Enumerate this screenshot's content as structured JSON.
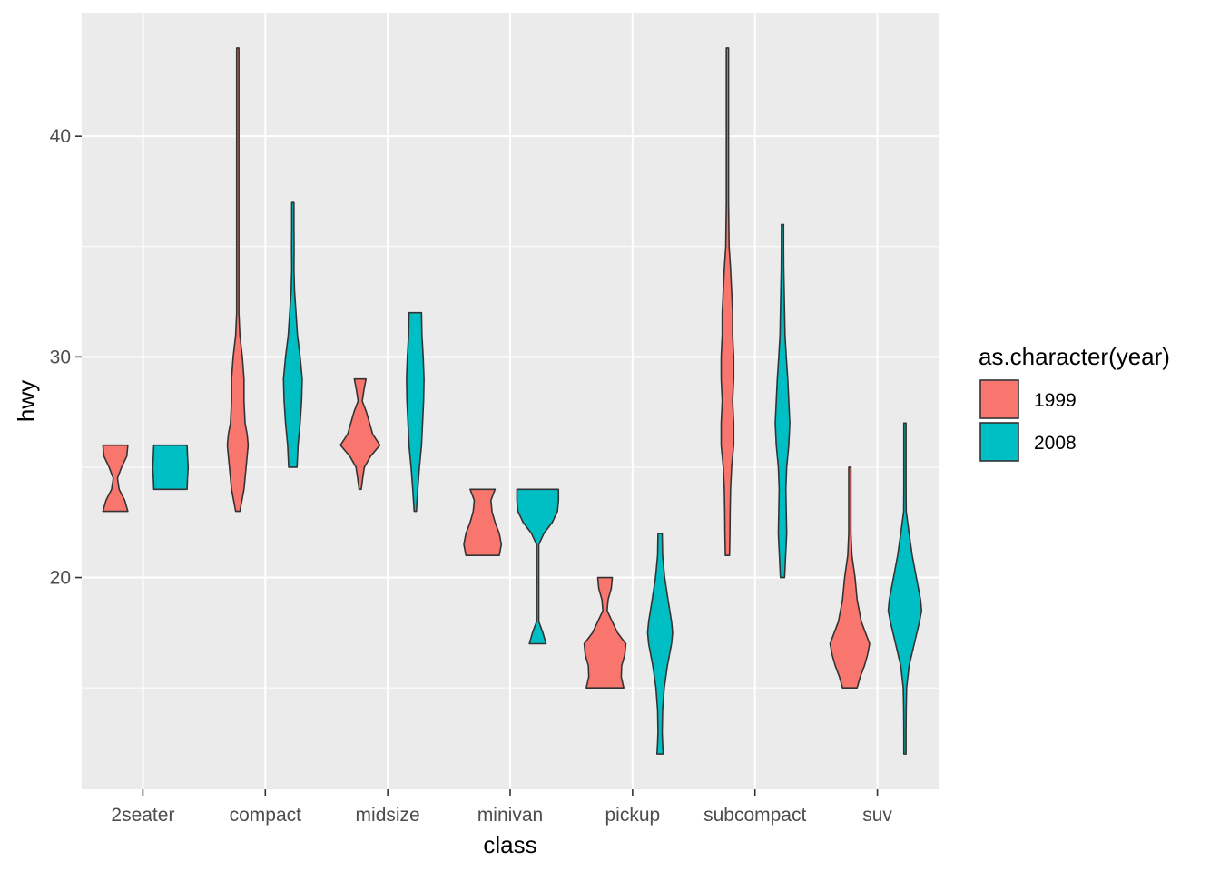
{
  "chart_data": {
    "type": "violin",
    "title": "",
    "xlabel": "class",
    "ylabel": "hwy",
    "categories": [
      "2seater",
      "compact",
      "midsize",
      "minivan",
      "pickup",
      "subcompact",
      "suv"
    ],
    "ylim": [
      10.4,
      45.6
    ],
    "y_ticks": [
      20,
      30,
      40
    ],
    "y_tick_labels": [
      "20",
      "30",
      "40"
    ],
    "y_minor_ticks": [
      15,
      25,
      35
    ],
    "legend": {
      "title": "as.character(year)",
      "position": "right",
      "entries": [
        {
          "label": "1999",
          "color": "#F8766D"
        },
        {
          "label": "2008",
          "color": "#00BFC4"
        }
      ]
    },
    "series": [
      {
        "name": "1999",
        "color": "#F8766D",
        "violins": [
          {
            "category": "2seater",
            "min": 23,
            "max": 26,
            "profile": [
              [
                23,
                0.6
              ],
              [
                23.5,
                0.45
              ],
              [
                24,
                0.18
              ],
              [
                24.5,
                0.1
              ],
              [
                25,
                0.3
              ],
              [
                25.5,
                0.55
              ],
              [
                26,
                0.6
              ]
            ]
          },
          {
            "category": "compact",
            "min": 23,
            "max": 44,
            "profile": [
              [
                23,
                0.1
              ],
              [
                23.5,
                0.2
              ],
              [
                24,
                0.3
              ],
              [
                25,
                0.4
              ],
              [
                26,
                0.5
              ],
              [
                26.5,
                0.45
              ],
              [
                27,
                0.35
              ],
              [
                28,
                0.3
              ],
              [
                29,
                0.3
              ],
              [
                30,
                0.22
              ],
              [
                31,
                0.1
              ],
              [
                32,
                0.05
              ],
              [
                34,
                0.03
              ],
              [
                36,
                0.04
              ],
              [
                38,
                0.02
              ],
              [
                40,
                0.02
              ],
              [
                42,
                0.02
              ],
              [
                44,
                0.02
              ]
            ]
          },
          {
            "category": "midsize",
            "min": 24,
            "max": 29,
            "profile": [
              [
                24,
                0.05
              ],
              [
                24.5,
                0.12
              ],
              [
                25,
                0.2
              ],
              [
                25.5,
                0.5
              ],
              [
                26,
                0.95
              ],
              [
                26.5,
                0.6
              ],
              [
                27,
                0.45
              ],
              [
                27.5,
                0.3
              ],
              [
                28,
                0.1
              ],
              [
                28.5,
                0.18
              ],
              [
                29,
                0.28
              ]
            ]
          },
          {
            "category": "minivan",
            "min": 21,
            "max": 24,
            "profile": [
              [
                21,
                0.8
              ],
              [
                21.5,
                0.9
              ],
              [
                22,
                0.8
              ],
              [
                22.5,
                0.6
              ],
              [
                23,
                0.45
              ],
              [
                23.5,
                0.4
              ],
              [
                24,
                0.6
              ]
            ]
          },
          {
            "category": "pickup",
            "min": 15,
            "max": 20,
            "profile": [
              [
                15,
                0.9
              ],
              [
                15.5,
                0.78
              ],
              [
                16,
                0.8
              ],
              [
                16.5,
                0.95
              ],
              [
                17,
                1.0
              ],
              [
                17.5,
                0.6
              ],
              [
                18,
                0.35
              ],
              [
                18.5,
                0.1
              ],
              [
                19,
                0.15
              ],
              [
                19.5,
                0.3
              ],
              [
                20,
                0.35
              ]
            ]
          },
          {
            "category": "subcompact",
            "min": 21,
            "max": 44,
            "profile": [
              [
                21,
                0.1
              ],
              [
                22,
                0.12
              ],
              [
                23,
                0.13
              ],
              [
                24,
                0.15
              ],
              [
                25,
                0.2
              ],
              [
                26,
                0.3
              ],
              [
                27,
                0.3
              ],
              [
                28,
                0.25
              ],
              [
                29,
                0.3
              ],
              [
                30,
                0.3
              ],
              [
                31,
                0.25
              ],
              [
                32,
                0.25
              ],
              [
                33,
                0.2
              ],
              [
                34,
                0.15
              ],
              [
                35,
                0.08
              ],
              [
                37,
                0.05
              ],
              [
                40,
                0.04
              ],
              [
                42,
                0.04
              ],
              [
                44,
                0.04
              ]
            ]
          },
          {
            "category": "suv",
            "min": 15,
            "max": 25,
            "profile": [
              [
                15,
                0.35
              ],
              [
                15.5,
                0.5
              ],
              [
                16,
                0.7
              ],
              [
                16.5,
                0.85
              ],
              [
                17,
                0.95
              ],
              [
                17.5,
                0.75
              ],
              [
                18,
                0.55
              ],
              [
                18.5,
                0.45
              ],
              [
                19,
                0.35
              ],
              [
                20,
                0.25
              ],
              [
                21,
                0.1
              ],
              [
                22,
                0.05
              ],
              [
                23,
                0.05
              ],
              [
                24,
                0.05
              ],
              [
                25,
                0.05
              ]
            ]
          }
        ]
      },
      {
        "name": "2008",
        "color": "#00BFC4",
        "violins": [
          {
            "category": "2seater",
            "min": 24,
            "max": 26,
            "profile": [
              [
                24,
                0.8
              ],
              [
                24.5,
                0.82
              ],
              [
                25,
                0.85
              ],
              [
                25.5,
                0.82
              ],
              [
                26,
                0.8
              ]
            ]
          },
          {
            "category": "compact",
            "min": 25,
            "max": 37,
            "profile": [
              [
                25,
                0.2
              ],
              [
                26,
                0.25
              ],
              [
                27,
                0.35
              ],
              [
                28,
                0.42
              ],
              [
                29,
                0.45
              ],
              [
                30,
                0.35
              ],
              [
                31,
                0.22
              ],
              [
                32,
                0.15
              ],
              [
                33,
                0.08
              ],
              [
                34,
                0.05
              ],
              [
                35,
                0.06
              ],
              [
                36,
                0.05
              ],
              [
                37,
                0.04
              ]
            ]
          },
          {
            "category": "midsize",
            "min": 23,
            "max": 32,
            "profile": [
              [
                23,
                0.05
              ],
              [
                24,
                0.12
              ],
              [
                25,
                0.2
              ],
              [
                26,
                0.3
              ],
              [
                27,
                0.35
              ],
              [
                28,
                0.4
              ],
              [
                29,
                0.42
              ],
              [
                30,
                0.38
              ],
              [
                31,
                0.32
              ],
              [
                32,
                0.3
              ]
            ]
          },
          {
            "category": "minivan",
            "min": 17,
            "max": 24,
            "profile": [
              [
                17,
                0.4
              ],
              [
                17.5,
                0.25
              ],
              [
                18,
                0.05
              ],
              [
                18.5,
                0.02
              ],
              [
                19,
                0.02
              ],
              [
                20,
                0.02
              ],
              [
                21,
                0.02
              ],
              [
                21.5,
                0.05
              ],
              [
                22,
                0.3
              ],
              [
                22.5,
                0.7
              ],
              [
                23,
                0.95
              ],
              [
                23.5,
                1.0
              ],
              [
                24,
                1.0
              ]
            ]
          },
          {
            "category": "pickup",
            "min": 12,
            "max": 22,
            "profile": [
              [
                12,
                0.15
              ],
              [
                12.5,
                0.12
              ],
              [
                13,
                0.1
              ],
              [
                14,
                0.12
              ],
              [
                15,
                0.2
              ],
              [
                16,
                0.35
              ],
              [
                16.5,
                0.45
              ],
              [
                17,
                0.55
              ],
              [
                17.5,
                0.6
              ],
              [
                18,
                0.55
              ],
              [
                19,
                0.38
              ],
              [
                20,
                0.22
              ],
              [
                21,
                0.12
              ],
              [
                22,
                0.1
              ]
            ]
          },
          {
            "category": "subcompact",
            "min": 20,
            "max": 36,
            "profile": [
              [
                20,
                0.1
              ],
              [
                21,
                0.15
              ],
              [
                22,
                0.2
              ],
              [
                23,
                0.18
              ],
              [
                24,
                0.16
              ],
              [
                25,
                0.2
              ],
              [
                26,
                0.3
              ],
              [
                27,
                0.35
              ],
              [
                28,
                0.3
              ],
              [
                29,
                0.25
              ],
              [
                30,
                0.18
              ],
              [
                31,
                0.12
              ],
              [
                32,
                0.1
              ],
              [
                33,
                0.08
              ],
              [
                34,
                0.06
              ],
              [
                35,
                0.05
              ],
              [
                36,
                0.05
              ]
            ]
          },
          {
            "category": "suv",
            "min": 12,
            "max": 27,
            "profile": [
              [
                12,
                0.05
              ],
              [
                13,
                0.05
              ],
              [
                14,
                0.06
              ],
              [
                15,
                0.08
              ],
              [
                16,
                0.2
              ],
              [
                17,
                0.45
              ],
              [
                18,
                0.7
              ],
              [
                18.5,
                0.8
              ],
              [
                19,
                0.75
              ],
              [
                20,
                0.55
              ],
              [
                21,
                0.35
              ],
              [
                22,
                0.2
              ],
              [
                23,
                0.06
              ],
              [
                24,
                0.05
              ],
              [
                25,
                0.05
              ],
              [
                26,
                0.05
              ],
              [
                27,
                0.04
              ]
            ]
          }
        ]
      }
    ]
  }
}
